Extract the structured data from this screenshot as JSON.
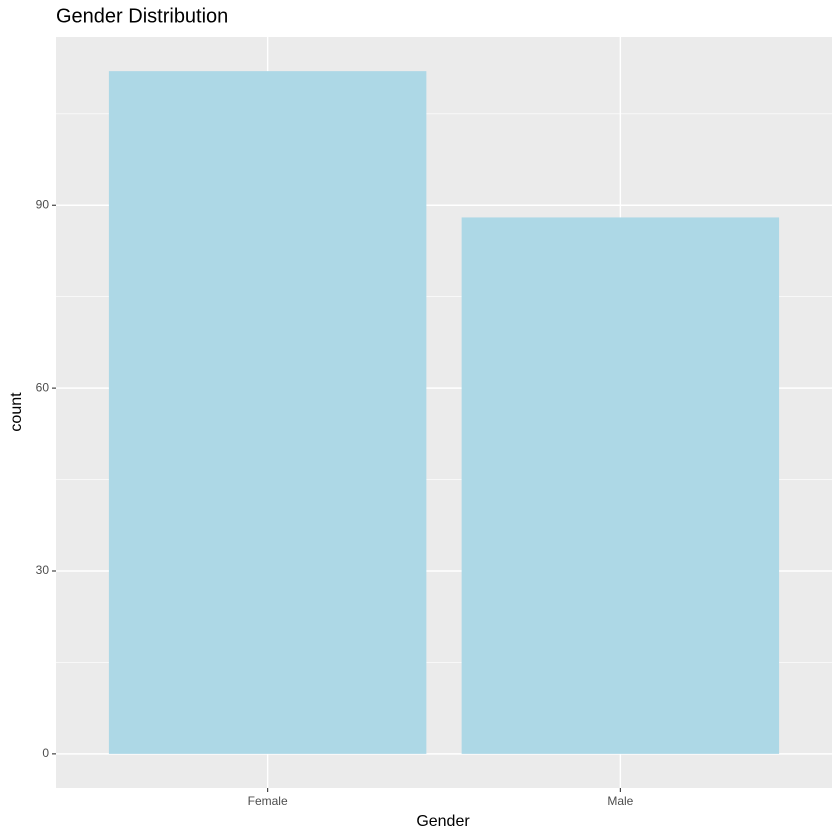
{
  "chart_data": {
    "type": "bar",
    "title": "Gender Distribution",
    "x_label": "Gender",
    "y_label": "count",
    "categories": [
      "Female",
      "Male"
    ],
    "values": [
      112,
      88
    ],
    "color": "#add8e6",
    "ylim": [
      -5.6,
      117.6
    ],
    "yticks": [
      0,
      30,
      60,
      90
    ],
    "grid": true
  }
}
